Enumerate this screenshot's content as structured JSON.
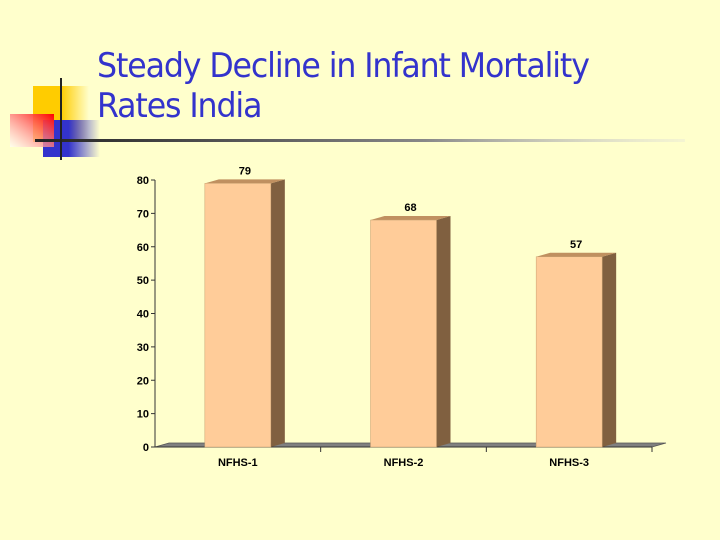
{
  "slide": {
    "title_line1": "Steady Decline in Infant Mortality",
    "title_line2": "Rates India",
    "title_color": "#3333cc",
    "background": "#ffffcc"
  },
  "chart_data": {
    "type": "bar",
    "title": "",
    "xlabel": "",
    "ylabel": "",
    "categories": [
      "NFHS-1",
      "NFHS-2",
      "NFHS-3"
    ],
    "values": [
      79,
      68,
      57
    ],
    "data_labels": [
      "79",
      "68",
      "57"
    ],
    "ylim": [
      0,
      80
    ],
    "yticks": [
      0,
      10,
      20,
      30,
      40,
      50,
      60,
      70,
      80
    ],
    "ytick_labels": [
      "0",
      "10",
      "20",
      "30",
      "40",
      "50",
      "60",
      "70",
      "80"
    ],
    "grid": false,
    "legend": "none",
    "bar_color": "#ffcc99",
    "bar_side_color": "#806040",
    "style": "3d-column"
  }
}
